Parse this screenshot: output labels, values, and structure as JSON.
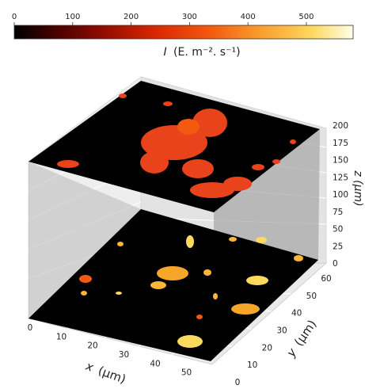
{
  "chart_data": {
    "type": "heatmap",
    "title": "",
    "colorbar": {
      "label": "I (E. m⁻². s⁻¹)",
      "label_main": "I",
      "label_units": "(E. m⁻². s⁻¹)",
      "range": [
        0,
        580
      ],
      "ticks": [
        "0",
        "100",
        "200",
        "300",
        "400",
        "500"
      ],
      "colormap": [
        "#000000",
        "#3a0000",
        "#8c0a00",
        "#d92800",
        "#f35a10",
        "#fb9a2c",
        "#fdd95e",
        "#ffffe8"
      ]
    },
    "xlabel": "x (μm)",
    "xlabel_main": "x",
    "xlabel_units": "(μm)",
    "ylabel": "y (μm)",
    "ylabel_main": "y",
    "ylabel_units": "(μm)",
    "zlabel": "z (μm)",
    "xlim": [
      0,
      60
    ],
    "ylim": [
      0,
      60
    ],
    "zlim": [
      0,
      200
    ],
    "x_ticks": [
      "0",
      "10",
      "20",
      "30",
      "40",
      "50"
    ],
    "y_ticks": [
      "0",
      "10",
      "20",
      "30",
      "40",
      "50",
      "60"
    ],
    "z_ticks": [
      "0",
      "25",
      "50",
      "75",
      "100",
      "125",
      "150",
      "175",
      "200"
    ],
    "slices": [
      {
        "z": 200,
        "intensity_range": "~100-250"
      },
      {
        "z": 0,
        "intensity_range": "~200-580"
      }
    ]
  }
}
